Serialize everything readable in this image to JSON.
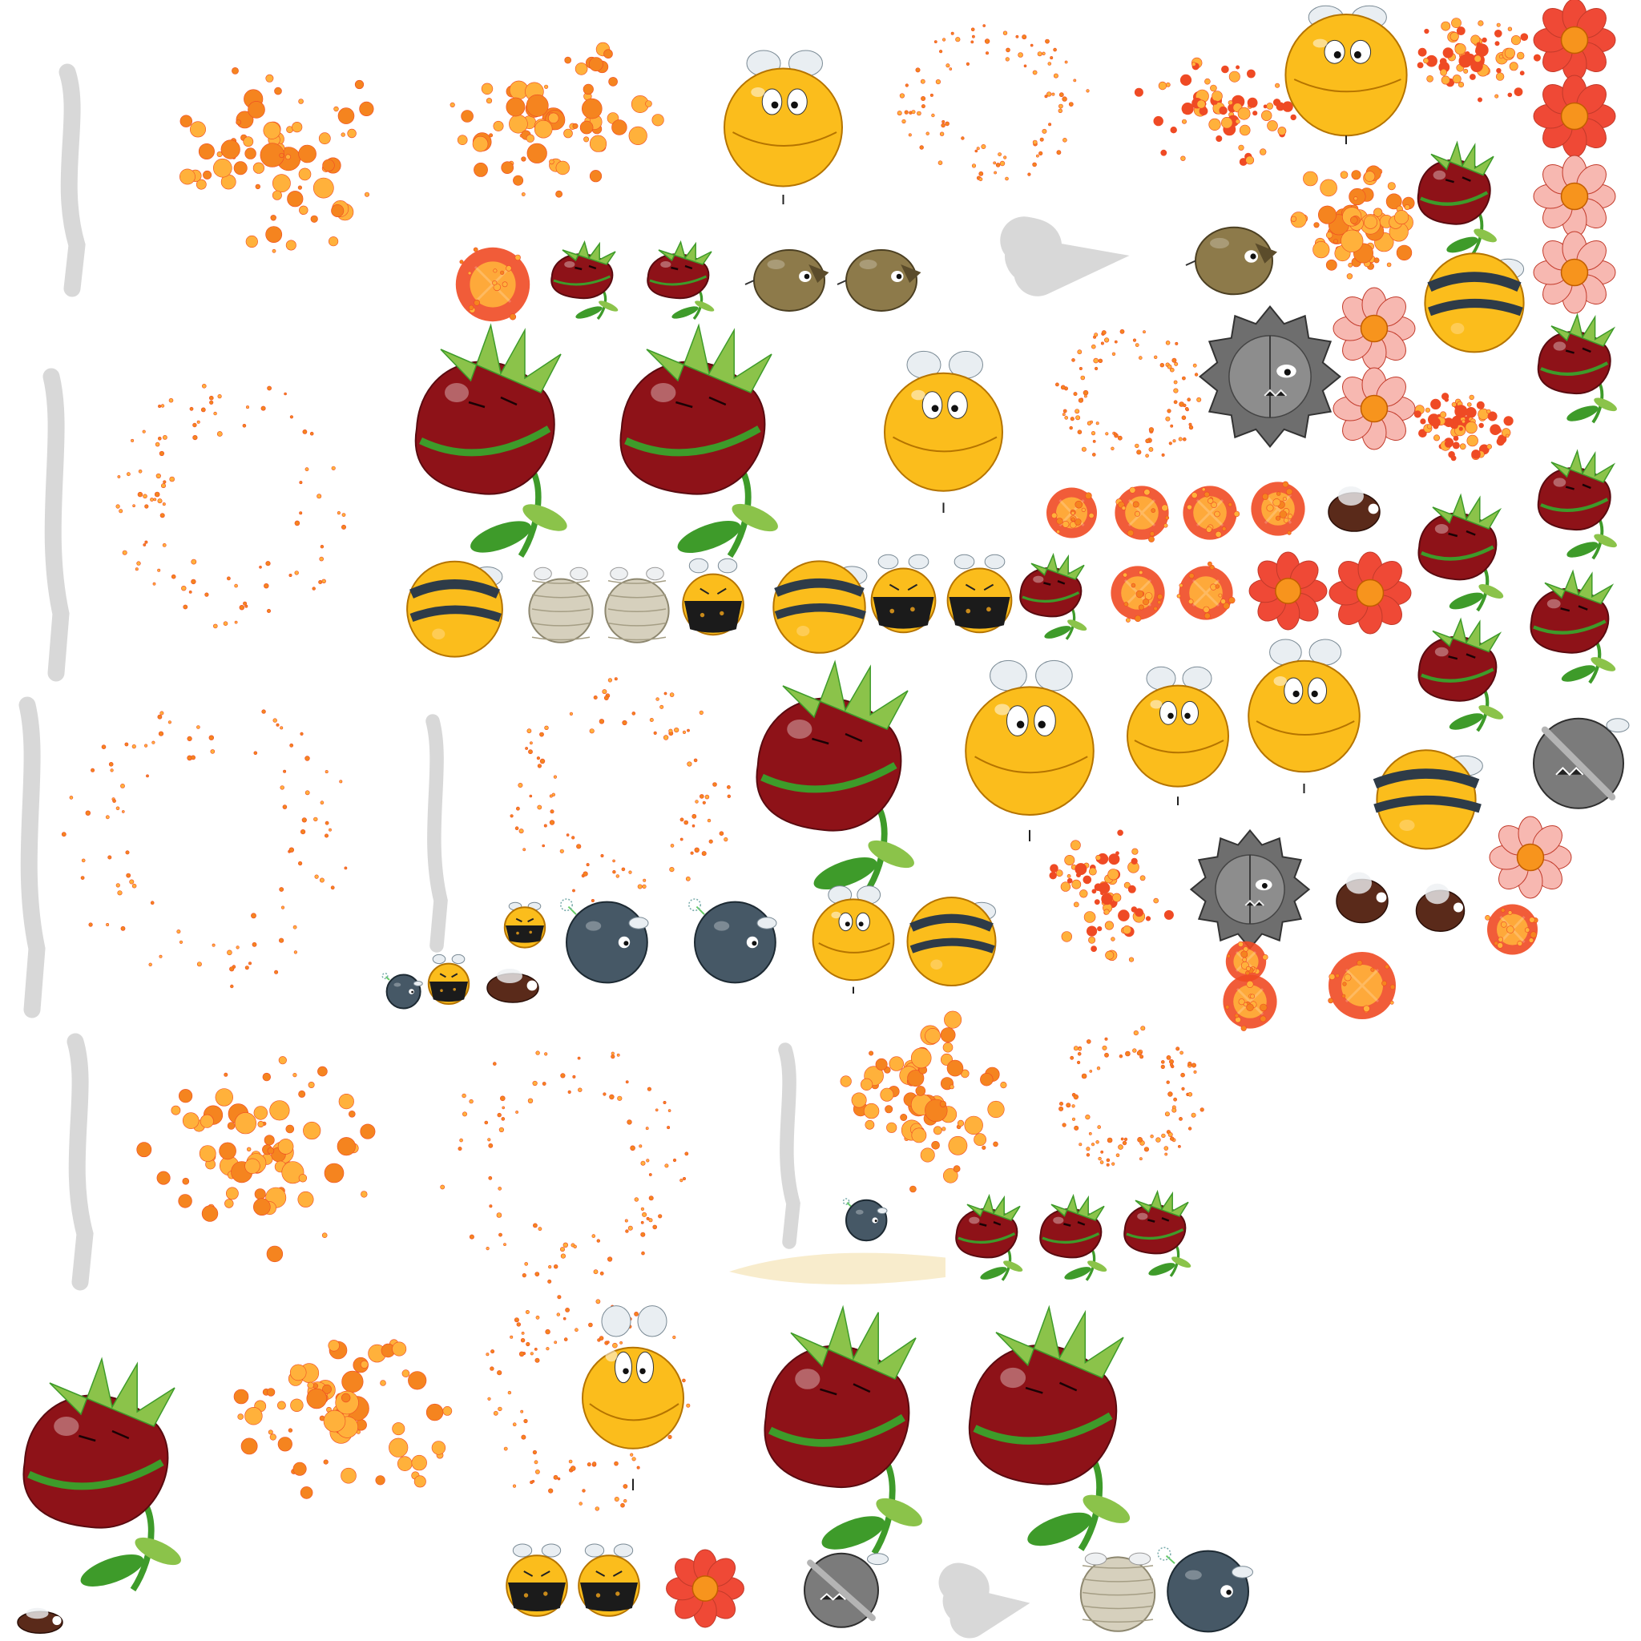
{
  "sheet": {
    "title": "",
    "background": "#ffffff"
  },
  "palette": {
    "orange": "#f5841f",
    "orange_light": "#ffb13b",
    "red_orange": "#ef4a24",
    "strawberry": "#8e1218",
    "strawberry_dark": "#5a0b10",
    "leaf": "#3e9b2a",
    "leaf_light": "#8bc34a",
    "bee_yellow": "#fbbd1c",
    "bee_stripe": "#2e3b48",
    "bomb_gray": "#465866",
    "spike_gray": "#6e6e6e",
    "mummy": "#d6d0bd",
    "flower_red": "#ef4936",
    "flower_pink": "#f7b8b1",
    "flower_center": "#f7941d",
    "smoke": "#b8b8b8",
    "trail": "#f6e7bf"
  },
  "sprite_kinds": [
    "particle-burst-icon",
    "particle-ring-icon",
    "strawberry-monster-icon",
    "bee-round-icon",
    "bee-striped-icon",
    "bee-sunglasses-icon",
    "bee-mummy-icon",
    "bee-bomb-icon",
    "spiked-mine-icon",
    "propeller-mine-icon",
    "potato-bug-icon",
    "flower-icon",
    "explosion-icon",
    "smoke-streak-icon",
    "dust-trail-icon",
    "fly-icon"
  ]
}
